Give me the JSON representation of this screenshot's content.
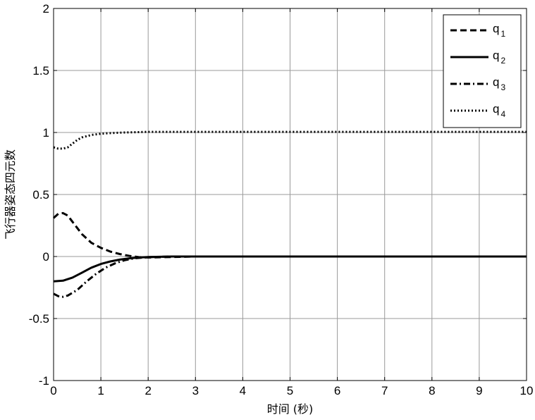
{
  "chart_data": {
    "type": "line",
    "title": "",
    "xlabel": "时间 (秒)",
    "ylabel": "飞行器姿态四元数",
    "xlim": [
      0,
      10
    ],
    "ylim": [
      -1,
      2
    ],
    "xticks": [
      0,
      1,
      2,
      3,
      4,
      5,
      6,
      7,
      8,
      9,
      10
    ],
    "xtick_labels": [
      "0",
      "1",
      "2",
      "3",
      "4",
      "5",
      "6",
      "7",
      "8",
      "9",
      "10"
    ],
    "yticks": [
      -1,
      -0.5,
      0,
      0.5,
      1,
      1.5,
      2
    ],
    "ytick_labels": [
      "-1",
      "-0.5",
      "0",
      "0.5",
      "1",
      "1.5",
      "2"
    ],
    "grid": true,
    "legend_position": "top-right",
    "series": [
      {
        "name": "q",
        "subscript": "1",
        "style": "dashed",
        "x": [
          0,
          0.1,
          0.2,
          0.3,
          0.4,
          0.6,
          0.8,
          1.0,
          1.2,
          1.4,
          1.6,
          1.8,
          2.0,
          2.5,
          3.0,
          4.0,
          5.0,
          6.0,
          7.0,
          8.0,
          9.0,
          10.0
        ],
        "y": [
          0.31,
          0.345,
          0.35,
          0.33,
          0.28,
          0.18,
          0.11,
          0.07,
          0.04,
          0.02,
          0.005,
          -0.005,
          -0.008,
          -0.004,
          0.0,
          0.0,
          0.0,
          0.0,
          0.0,
          0.0,
          0.0,
          0.0
        ]
      },
      {
        "name": "q",
        "subscript": "2",
        "style": "solid",
        "x": [
          0,
          0.2,
          0.4,
          0.6,
          0.8,
          1.0,
          1.2,
          1.4,
          1.6,
          1.8,
          2.0,
          2.5,
          3.0,
          4.0,
          5.0,
          6.0,
          7.0,
          8.0,
          9.0,
          10.0
        ],
        "y": [
          -0.2,
          -0.195,
          -0.17,
          -0.13,
          -0.09,
          -0.06,
          -0.04,
          -0.025,
          -0.015,
          -0.008,
          -0.004,
          0.0,
          0.0,
          0.0,
          0.0,
          0.0,
          0.0,
          0.0,
          0.0,
          0.0
        ]
      },
      {
        "name": "q",
        "subscript": "3",
        "style": "dashdot",
        "x": [
          0,
          0.1,
          0.2,
          0.3,
          0.5,
          0.7,
          0.9,
          1.1,
          1.3,
          1.5,
          1.7,
          2.0,
          2.5,
          3.0,
          4.0,
          5.0,
          6.0,
          7.0,
          8.0,
          9.0,
          10.0
        ],
        "y": [
          -0.3,
          -0.32,
          -0.325,
          -0.315,
          -0.27,
          -0.2,
          -0.14,
          -0.09,
          -0.055,
          -0.03,
          -0.015,
          -0.005,
          0.0,
          0.0,
          0.0,
          0.0,
          0.0,
          0.0,
          0.0,
          0.0,
          0.0
        ]
      },
      {
        "name": "q",
        "subscript": "4",
        "style": "dotted",
        "x": [
          0,
          0.1,
          0.2,
          0.3,
          0.4,
          0.5,
          0.6,
          0.8,
          1.0,
          1.2,
          1.5,
          2.0,
          3.0,
          4.0,
          5.0,
          6.0,
          7.0,
          8.0,
          9.0,
          10.0
        ],
        "y": [
          0.88,
          0.87,
          0.87,
          0.88,
          0.91,
          0.94,
          0.96,
          0.98,
          0.99,
          0.995,
          1.0,
          1.005,
          1.005,
          1.005,
          1.005,
          1.005,
          1.005,
          1.005,
          1.005,
          1.005
        ]
      }
    ]
  }
}
